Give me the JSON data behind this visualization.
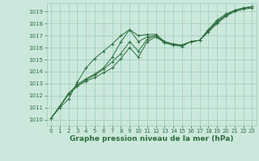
{
  "background_color": "#cce8dc",
  "grid_color": "#99ccbb",
  "line_color": "#2d6e3e",
  "xlabel": "Graphe pression niveau de la mer (hPa)",
  "xlabel_fontsize": 6.5,
  "xlim": [
    -0.5,
    23.5
  ],
  "ylim": [
    1009.5,
    1019.7
  ],
  "yticks": [
    1010,
    1011,
    1012,
    1013,
    1014,
    1015,
    1016,
    1017,
    1018,
    1019
  ],
  "xticks": [
    0,
    1,
    2,
    3,
    4,
    5,
    6,
    7,
    8,
    9,
    10,
    11,
    12,
    13,
    14,
    15,
    16,
    17,
    18,
    19,
    20,
    21,
    22,
    23
  ],
  "series": [
    [
      1010.1,
      1011.1,
      1012.1,
      1012.8,
      1013.2,
      1013.5,
      1013.9,
      1014.3,
      1015.1,
      1016.0,
      1015.2,
      1016.5,
      1016.9,
      1016.4,
      1016.2,
      1016.2,
      1016.5,
      1016.6,
      1017.3,
      1018.0,
      1018.6,
      1019.0,
      1019.2,
      1019.3
    ],
    [
      1010.1,
      1011.1,
      1012.1,
      1012.8,
      1013.3,
      1013.7,
      1014.2,
      1014.8,
      1015.5,
      1016.5,
      1015.7,
      1016.7,
      1017.0,
      1016.5,
      1016.3,
      1016.2,
      1016.5,
      1016.6,
      1017.4,
      1018.1,
      1018.7,
      1019.1,
      1019.3,
      1019.4
    ],
    [
      1010.1,
      1011.1,
      1012.2,
      1012.9,
      1013.4,
      1013.8,
      1014.3,
      1015.2,
      1016.5,
      1017.5,
      1017.0,
      1017.1,
      1017.1,
      1016.5,
      1016.3,
      1016.2,
      1016.5,
      1016.6,
      1017.4,
      1018.2,
      1018.7,
      1019.1,
      1019.3,
      1019.4
    ],
    [
      1010.1,
      1011.0,
      1011.7,
      1013.1,
      1014.3,
      1015.1,
      1015.7,
      1016.3,
      1017.0,
      1017.5,
      1016.5,
      1016.9,
      1017.0,
      1016.4,
      1016.2,
      1016.1,
      1016.5,
      1016.6,
      1017.5,
      1018.3,
      1018.8,
      1019.1,
      1019.3,
      1019.4
    ]
  ]
}
